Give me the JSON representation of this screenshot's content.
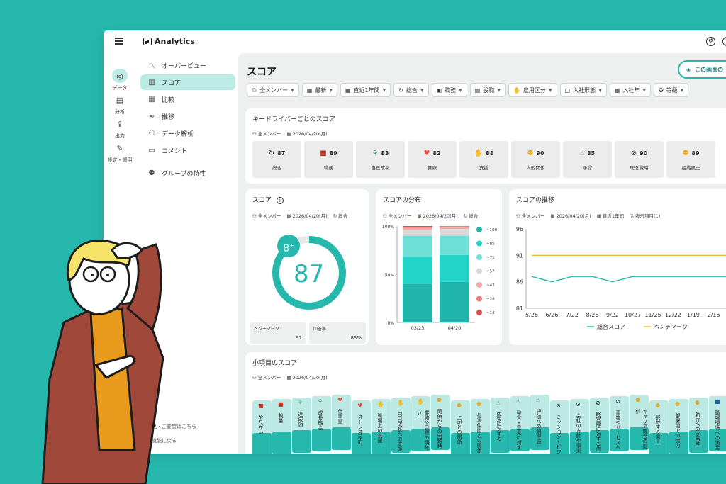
{
  "brand": "Analytics",
  "rail": [
    {
      "label": "データ",
      "icon": "◎"
    },
    {
      "label": "分析",
      "icon": "▤"
    },
    {
      "label": "出力",
      "icon": "⇪"
    },
    {
      "label": "設定・運用",
      "icon": "✎"
    }
  ],
  "nav": [
    {
      "label": "オーバービュー",
      "icon": "〽"
    },
    {
      "label": "スコア",
      "icon": "▥"
    },
    {
      "label": "比較",
      "icon": "▦"
    },
    {
      "label": "推移",
      "icon": "≈"
    },
    {
      "label": "データ解析",
      "icon": "⚇"
    },
    {
      "label": "コメント",
      "icon": "▭"
    },
    {
      "label": "グループの特性",
      "icon": "⚉"
    }
  ],
  "nav_footer": [
    "ご意見・ご要望はこちら",
    "旧の機能に戻る"
  ],
  "page_title": "スコア",
  "share_button": "この画面の",
  "filters": [
    "全メンバー",
    "最新",
    "直近1年間",
    "総合",
    "職務",
    "役職",
    "雇用区分",
    "入社形態",
    "入社年",
    "等級"
  ],
  "key_drivers": {
    "title": "キードライバーごとのスコア",
    "meta": [
      "全メンバー",
      "2026/04/20(月)"
    ],
    "items": [
      {
        "value": "87",
        "label": "総合",
        "icon": "↻",
        "color": "#333333"
      },
      {
        "value": "89",
        "label": "職務",
        "icon": "■",
        "color": "#c0392b"
      },
      {
        "value": "83",
        "label": "自己成長",
        "icon": "⚘",
        "color": "#2e9e6a"
      },
      {
        "value": "82",
        "label": "健康",
        "icon": "♥",
        "color": "#e74c3c"
      },
      {
        "value": "88",
        "label": "支援",
        "icon": "✋",
        "color": "#555555"
      },
      {
        "value": "90",
        "label": "人間関係",
        "icon": "⚉",
        "color": "#e6a817"
      },
      {
        "value": "85",
        "label": "承認",
        "icon": "☝",
        "color": "#555555"
      },
      {
        "value": "90",
        "label": "理念戦略",
        "icon": "⊘",
        "color": "#333333"
      },
      {
        "value": "89",
        "label": "組織風土",
        "icon": "⚉",
        "color": "#e6a817"
      }
    ]
  },
  "score_card": {
    "title": "スコア",
    "meta": [
      "全メンバー",
      "2026/04/20(月)",
      "総合"
    ],
    "grade": "B",
    "grade_mod": "+",
    "score": "87",
    "benchmark_label": "ベンチマーク",
    "benchmark_value": "91",
    "response_label": "回答率",
    "response_value": "83%"
  },
  "distribution_card": {
    "title": "スコアの分布",
    "meta": [
      "全メンバー",
      "2026/04/20(月)",
      "総合"
    ]
  },
  "trend_card": {
    "title": "スコアの推移",
    "meta": [
      "全メンバー",
      "2026/04/20(月)",
      "直近1年間",
      "表示項目(1)"
    ]
  },
  "sub_items": {
    "title": "小項目のスコア",
    "meta": [
      "全メンバー",
      "2026/04/20(月)"
    ],
    "items": [
      {
        "label": "やりがい",
        "icon": "■",
        "color": "#c0392b"
      },
      {
        "label": "裁量",
        "icon": "■",
        "color": "#c0392b"
      },
      {
        "label": "達成感",
        "icon": "⚘",
        "color": "#2e9e6a"
      },
      {
        "label": "成長機会",
        "icon": "⚘",
        "color": "#2e9e6a"
      },
      {
        "label": "仕事量",
        "icon": "♥",
        "color": "#e74c3c"
      },
      {
        "label": "ストレス反応",
        "icon": "♥",
        "color": "#e74c3c"
      },
      {
        "label": "職場上の支援",
        "icon": "✋",
        "color": "#555555"
      },
      {
        "label": "自己成長への支援",
        "icon": "✋",
        "color": "#555555"
      },
      {
        "label": "業務や目標の明確さ",
        "icon": "✋",
        "color": "#555555"
      },
      {
        "label": "同僚からの困難時",
        "icon": "⚉",
        "color": "#e6a817"
      },
      {
        "label": "上司との関係",
        "icon": "⚉",
        "color": "#e6a817"
      },
      {
        "label": "仕事仲間との関係",
        "icon": "⚉",
        "color": "#e6a817"
      },
      {
        "label": "成果に対する",
        "icon": "☝",
        "color": "#555555"
      },
      {
        "label": "発言・意見に対す",
        "icon": "☝",
        "color": "#555555"
      },
      {
        "label": "評価への納得感",
        "icon": "☝",
        "color": "#555555"
      },
      {
        "label": "ミッション・ビジ",
        "icon": "⊘",
        "color": "#333333"
      },
      {
        "label": "会社の方針や事業",
        "icon": "⊘",
        "color": "#333333"
      },
      {
        "label": "経営陣に対する信",
        "icon": "⊘",
        "color": "#333333"
      },
      {
        "label": "事業やサービスへ",
        "icon": "⊘",
        "color": "#333333"
      },
      {
        "label": "キャリア機会の提供",
        "icon": "⚉",
        "color": "#e6a817"
      },
      {
        "label": "挑戦する風土",
        "icon": "⚉",
        "color": "#e6a817"
      },
      {
        "label": "部署間での協力",
        "icon": "⚉",
        "color": "#e6a817"
      },
      {
        "label": "執行への妥当性",
        "icon": "⚉",
        "color": "#e6a817"
      },
      {
        "label": "職場環境への満足",
        "icon": "■",
        "color": "#1a5fa0"
      }
    ]
  },
  "chart_data": [
    {
      "type": "bar",
      "title": "スコアの分布",
      "stacked": true,
      "categories": [
        "03/23",
        "04/20"
      ],
      "ylim": [
        0,
        100
      ],
      "yticks": [
        "0%",
        "50%",
        "100%"
      ],
      "series": [
        {
          "name": "~100",
          "color": "#1fb5aa",
          "values": [
            40,
            42
          ]
        },
        {
          "name": "~85",
          "color": "#22d3c8",
          "values": [
            28,
            28
          ]
        },
        {
          "name": "~71",
          "color": "#6fe0d8",
          "values": [
            22,
            20
          ]
        },
        {
          "name": "~57",
          "color": "#d9d9d9",
          "values": [
            6,
            7
          ]
        },
        {
          "name": "~42",
          "color": "#f2a9a9",
          "values": [
            2,
            2
          ]
        },
        {
          "name": "~28",
          "color": "#ec7a7a",
          "values": [
            1,
            1
          ]
        },
        {
          "name": "~14",
          "color": "#e04b4b",
          "values": [
            1,
            0
          ]
        }
      ],
      "legend_position": "right"
    },
    {
      "type": "line",
      "title": "スコアの推移",
      "x": [
        "5/26",
        "6/26",
        "7/22",
        "8/25",
        "9/22",
        "10/27",
        "11/25",
        "12/22",
        "1/19",
        "2/16"
      ],
      "yticks": [
        81,
        86,
        91,
        96
      ],
      "ylim": [
        81,
        96
      ],
      "series": [
        {
          "name": "総合スコア",
          "color": "#26b8ad",
          "values": [
            87,
            86,
            87,
            87,
            86,
            87,
            87,
            87,
            87,
            87
          ]
        },
        {
          "name": "ベンチマーク",
          "color": "#e6c229",
          "values": [
            91,
            91,
            91,
            91,
            91,
            91,
            91,
            91,
            91,
            91
          ]
        }
      ],
      "legend_position": "bottom"
    },
    {
      "type": "pie",
      "title": "スコア",
      "values": [
        87
      ],
      "max": 100
    }
  ]
}
